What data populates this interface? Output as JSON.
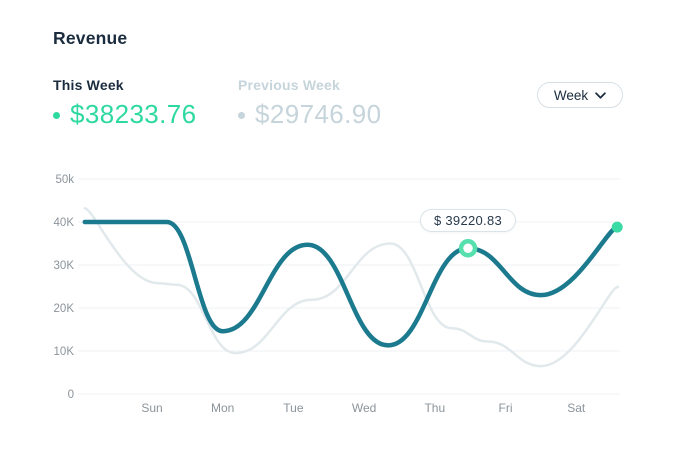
{
  "header": {
    "title": "Revenue"
  },
  "stats": {
    "this_week": {
      "label": "This Week",
      "value": "$38233.76",
      "dot_color": "#2ed9a1"
    },
    "previous_week": {
      "label": "Previous Week",
      "value": "$29746.90",
      "dot_color": "#c6d4db"
    }
  },
  "controls": {
    "range_selector": {
      "value": "Week",
      "icon": "chevron-down"
    }
  },
  "colors": {
    "accent": "#2ed9a1",
    "line_current": "#1c7a8f",
    "line_previous": "#e2e9ec",
    "ring_stroke": "#55e0ae",
    "end_dot": "#3cdaa4",
    "grid": "#edf1f3",
    "axis_text": "#8b949b",
    "muted_text": "#c6d4db",
    "dark_text": "#1b2c3e"
  },
  "chart_data": {
    "type": "line",
    "x_labels": [
      "Sun",
      "Mon",
      "Tue",
      "Wed",
      "Thu",
      "Fri",
      "Sat"
    ],
    "y_tick_labels": [
      "50k",
      "40K",
      "30K",
      "20K",
      "10K",
      "0"
    ],
    "y_tick_values": [
      50000,
      40000,
      30000,
      20000,
      10000,
      0
    ],
    "ylim": [
      0,
      50000
    ],
    "grid": "horizontal",
    "legend": "none",
    "series": [
      {
        "name": "This Week",
        "color": "#1c7a8f",
        "width": 4.5,
        "end_dot": true,
        "steep_end": true,
        "highlight_index": 5,
        "points": [
          {
            "x": -0.95,
            "v": 40000
          },
          {
            "x": 0.21,
            "v": 40000
          },
          {
            "x": 1.0,
            "v": 14600
          },
          {
            "x": 2.2,
            "v": 34700
          },
          {
            "x": 3.34,
            "v": 11300
          },
          {
            "x": 4.47,
            "v": 33900
          },
          {
            "x": 5.5,
            "v": 23000
          },
          {
            "x": 6.58,
            "v": 38800
          }
        ]
      },
      {
        "name": "Previous Week",
        "color": "#e2e9ec",
        "width": 2.5,
        "steep_start": true,
        "steep_end": true,
        "points": [
          {
            "x": -0.95,
            "v": 43200
          },
          {
            "x": 0.08,
            "v": 25800
          },
          {
            "x": 0.35,
            "v": 25400
          },
          {
            "x": 1.18,
            "v": 9500
          },
          {
            "x": 2.26,
            "v": 21900
          },
          {
            "x": 3.37,
            "v": 35000
          },
          {
            "x": 4.24,
            "v": 15300
          },
          {
            "x": 4.75,
            "v": 12200
          },
          {
            "x": 5.5,
            "v": 6500
          },
          {
            "x": 6.59,
            "v": 24900
          }
        ]
      }
    ],
    "tooltip": {
      "text": "$ 39220.83",
      "series": "This Week"
    }
  }
}
